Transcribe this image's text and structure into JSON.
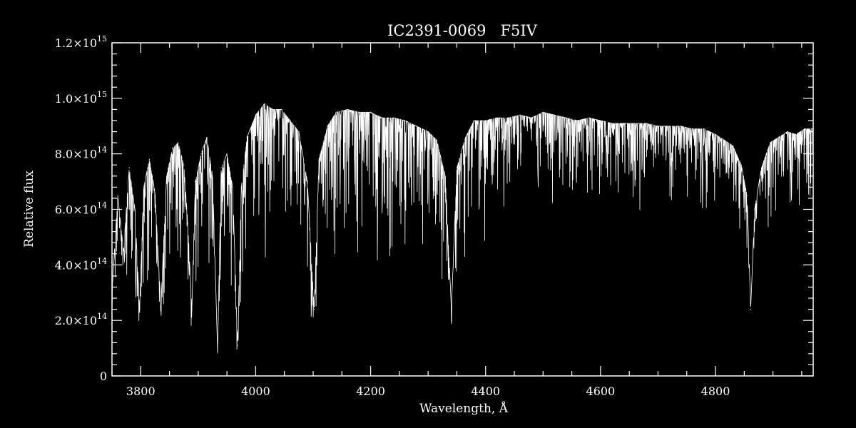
{
  "chart_data": {
    "type": "line",
    "title": "IC2391-0069   F5IV",
    "xlabel": "Wavelength, Å",
    "ylabel": "Relative flux",
    "xlim": [
      3750,
      4970
    ],
    "ylim": [
      0,
      1200000000000000.0
    ],
    "grid": false,
    "x_ticks": [
      {
        "value": 3800,
        "label": "3800"
      },
      {
        "value": 4000,
        "label": "4000"
      },
      {
        "value": 4200,
        "label": "4200"
      },
      {
        "value": 4400,
        "label": "4400"
      },
      {
        "value": 4600,
        "label": "4600"
      },
      {
        "value": 4800,
        "label": "4800"
      }
    ],
    "y_ticks": [
      {
        "value": 0,
        "mantissa": "0",
        "exponent": ""
      },
      {
        "value": 200000000000000.0,
        "mantissa": "2.0×10",
        "exponent": "14"
      },
      {
        "value": 400000000000000.0,
        "mantissa": "4.0×10",
        "exponent": "14"
      },
      {
        "value": 600000000000000.0,
        "mantissa": "6.0×10",
        "exponent": "14"
      },
      {
        "value": 800000000000000.0,
        "mantissa": "8.0×10",
        "exponent": "14"
      },
      {
        "value": 1000000000000000.0,
        "mantissa": "1.0×10",
        "exponent": "15"
      },
      {
        "value": 1200000000000000.0,
        "mantissa": "1.2×10",
        "exponent": "15"
      }
    ],
    "series": [
      {
        "color": "#ffffff",
        "units": "1e14",
        "x": [
          3750,
          3760,
          3770,
          3780,
          3790,
          3798,
          3805,
          3815,
          3825,
          3835,
          3845,
          3855,
          3865,
          3875,
          3882,
          3889,
          3895,
          3905,
          3915,
          3925,
          3933.7,
          3940,
          3950,
          3960,
          3968.5,
          3975,
          3985,
          4000,
          4015,
          4030,
          4045,
          4060,
          4075,
          4090,
          4101.7,
          4110,
          4125,
          4140,
          4160,
          4180,
          4200,
          4220,
          4240,
          4260,
          4280,
          4300,
          4315,
          4330,
          4340.5,
          4350,
          4365,
          4380,
          4400,
          4420,
          4440,
          4460,
          4480,
          4500,
          4520,
          4540,
          4560,
          4580,
          4600,
          4620,
          4640,
          4660,
          4680,
          4700,
          4720,
          4740,
          4760,
          4780,
          4800,
          4815,
          4830,
          4845,
          4855,
          4861.3,
          4868,
          4880,
          4895,
          4910,
          4925,
          4940,
          4955,
          4970
        ],
        "y": [
          3.0,
          6.5,
          4.5,
          7.5,
          6.0,
          2.4,
          6.8,
          7.8,
          6.6,
          2.5,
          7.2,
          8.2,
          8.4,
          7.6,
          5.5,
          2.4,
          7.0,
          8.0,
          8.6,
          7.2,
          0.9,
          7.5,
          8.0,
          6.8,
          1.1,
          6.8,
          8.6,
          9.4,
          9.8,
          9.6,
          9.6,
          9.2,
          8.8,
          7.0,
          2.4,
          7.8,
          9.0,
          9.5,
          9.6,
          9.5,
          9.5,
          9.3,
          9.3,
          9.2,
          9.0,
          8.8,
          8.5,
          7.2,
          2.4,
          7.5,
          8.6,
          9.2,
          9.2,
          9.3,
          9.3,
          9.4,
          9.3,
          9.5,
          9.4,
          9.3,
          9.2,
          9.3,
          9.2,
          9.1,
          9.1,
          9.1,
          9.1,
          9.0,
          9.0,
          9.0,
          8.9,
          8.9,
          8.7,
          8.5,
          8.3,
          7.6,
          6.5,
          2.4,
          6.0,
          7.5,
          8.4,
          8.6,
          8.8,
          8.7,
          8.9,
          8.9
        ]
      }
    ]
  }
}
